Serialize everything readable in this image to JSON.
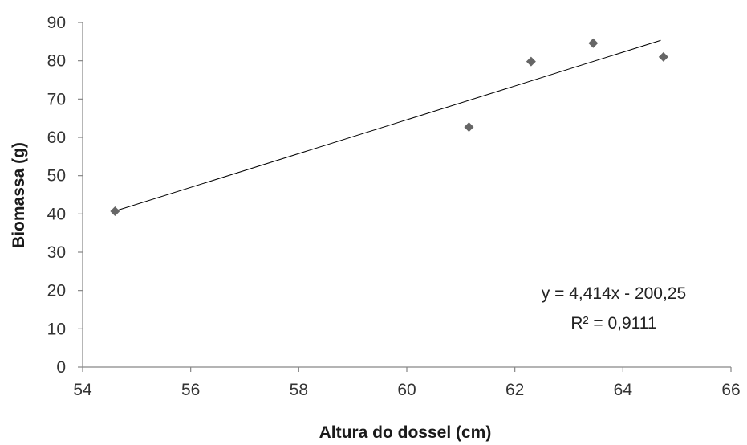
{
  "chart_data": {
    "type": "scatter",
    "xlabel": "Altura do dossel (cm)",
    "ylabel": "Biomassa (g)",
    "xlim": [
      54,
      66
    ],
    "ylim": [
      0,
      90
    ],
    "x_ticks": [
      "54",
      "56",
      "58",
      "60",
      "62",
      "64",
      "66"
    ],
    "y_ticks": [
      "0",
      "10",
      "20",
      "30",
      "40",
      "50",
      "60",
      "70",
      "80",
      "90"
    ],
    "grid": false,
    "legend": "none",
    "series": [
      {
        "marker": "diamond",
        "color": "#666666",
        "points": [
          {
            "x": 54.6,
            "y": 40.7
          },
          {
            "x": 61.15,
            "y": 62.7
          },
          {
            "x": 62.3,
            "y": 79.8
          },
          {
            "x": 63.45,
            "y": 84.6
          },
          {
            "x": 64.75,
            "y": 81.0
          }
        ]
      }
    ],
    "trendline": {
      "type": "linear",
      "slope": 4.414,
      "intercept": -200.25,
      "x_range": [
        54.6,
        64.7
      ],
      "color": "#000000"
    },
    "annotations": {
      "equation": "y = 4,414x - 200,25",
      "r_squared": "R² = 0,9111"
    }
  }
}
